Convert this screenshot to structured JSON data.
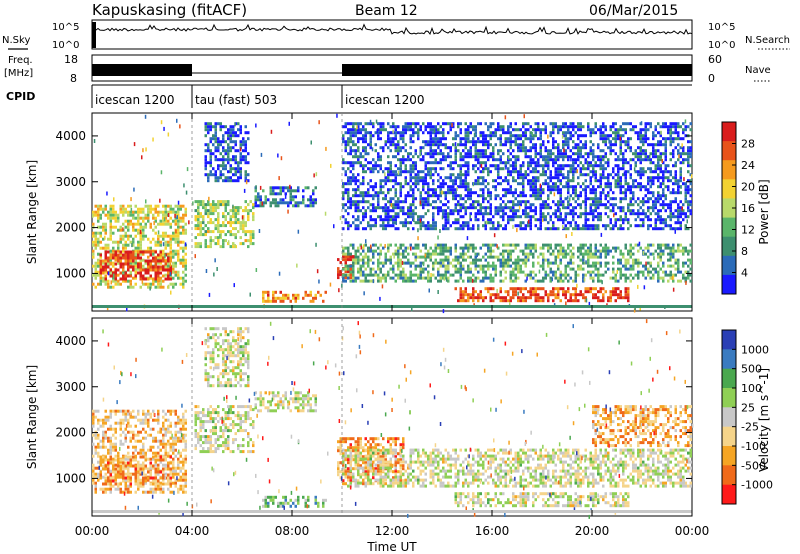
{
  "header": {
    "station": "Kapuskasing (fitACF)",
    "beam": "Beam 12",
    "date": "06/Mar/2015"
  },
  "left_labels": {
    "nsky": "N.Sky",
    "nsky_ticks": [
      "10^5",
      "10^0"
    ],
    "freq": "Freq.",
    "freq_unit": "[MHz]",
    "freq_ticks": [
      "18",
      "8"
    ],
    "cpid": "CPID"
  },
  "right_labels": {
    "nsearch": "N.Search",
    "nsearch_ticks": [
      "10^5",
      "10^0"
    ],
    "nave": "Nave",
    "nave_ticks": [
      "60",
      "0"
    ]
  },
  "cpid_segments": [
    {
      "label": "icescan 1200",
      "start_hour": 0,
      "end_hour": 4
    },
    {
      "label": "tau (fast) 503",
      "start_hour": 4,
      "end_hour": 10
    },
    {
      "label": "icescan 1200",
      "start_hour": 10,
      "end_hour": 24
    }
  ],
  "colors": {
    "power": [
      "#1a1aff",
      "#2b6bb8",
      "#3d8f6f",
      "#5ab56a",
      "#b8d96a",
      "#f2d232",
      "#f59a1e",
      "#e8531a",
      "#d91c1c"
    ],
    "velocity": [
      "#ff1a1a",
      "#f06a1a",
      "#f5a524",
      "#f5d48a",
      "#c8c8c8",
      "#8fcf55",
      "#4aa84f",
      "#3a7bc0",
      "#2a3fb5"
    ]
  },
  "chart_data": [
    {
      "type": "heatmap",
      "title": "Power",
      "xlabel": "Time UT",
      "ylabel": "Slant Range [km]",
      "xlim_hours": [
        0,
        24
      ],
      "ylim": [
        180,
        4500
      ],
      "x_ticks": [
        "00:00",
        "04:00",
        "08:00",
        "12:00",
        "16:00",
        "20:00",
        "00:00"
      ],
      "y_ticks": [
        1000,
        2000,
        3000,
        4000
      ],
      "colorbar": {
        "label": "Power [dB]",
        "ticks": [
          "4",
          "8",
          "12",
          "16",
          "20",
          "24",
          "28"
        ],
        "range": [
          0,
          30
        ]
      },
      "echo_regions": [
        {
          "t0": 0.0,
          "t1": 3.8,
          "r0": 700,
          "r1": 2500,
          "level": 0.55
        },
        {
          "t0": 0.3,
          "t1": 3.2,
          "r0": 900,
          "r1": 1500,
          "level": 0.9
        },
        {
          "t0": 4.1,
          "t1": 6.5,
          "r0": 1600,
          "r1": 2600,
          "level": 0.5
        },
        {
          "t0": 4.5,
          "t1": 6.2,
          "r0": 3000,
          "r1": 4300,
          "level": 0.15
        },
        {
          "t0": 6.5,
          "t1": 9.0,
          "r0": 2500,
          "r1": 2900,
          "level": 0.2
        },
        {
          "t0": 6.8,
          "t1": 9.4,
          "r0": 380,
          "r1": 620,
          "level": 0.75
        },
        {
          "t0": 9.8,
          "t1": 10.5,
          "r0": 900,
          "r1": 1400,
          "level": 0.95
        },
        {
          "t0": 10.0,
          "t1": 24.0,
          "r0": 800,
          "r1": 1650,
          "level": 0.35
        },
        {
          "t0": 14.5,
          "t1": 21.5,
          "r0": 400,
          "r1": 700,
          "level": 0.85
        },
        {
          "t0": 10.0,
          "t1": 24.0,
          "r0": 2000,
          "r1": 4300,
          "level": 0.12
        }
      ]
    },
    {
      "type": "heatmap",
      "title": "Velocity",
      "xlabel": "Time UT",
      "ylabel": "Slant Range [km]",
      "xlim_hours": [
        0,
        24
      ],
      "ylim": [
        180,
        4500
      ],
      "x_ticks": [
        "00:00",
        "04:00",
        "08:00",
        "12:00",
        "16:00",
        "20:00",
        "00:00"
      ],
      "y_ticks": [
        1000,
        2000,
        3000,
        4000
      ],
      "colorbar": {
        "label": "Velocity [m s^-1]",
        "ticks": [
          "1000",
          "500",
          "100",
          "25",
          "-25",
          "-100",
          "-500",
          "-1000"
        ],
        "range": [
          -1000,
          1000
        ]
      },
      "echo_regions": [
        {
          "t0": 0.0,
          "t1": 3.8,
          "r0": 700,
          "r1": 2500,
          "level": 0.35
        },
        {
          "t0": 0.3,
          "t1": 3.2,
          "r0": 900,
          "r1": 1500,
          "level": 0.25
        },
        {
          "t0": 4.1,
          "t1": 6.5,
          "r0": 1600,
          "r1": 2600,
          "level": 0.5
        },
        {
          "t0": 4.5,
          "t1": 6.2,
          "r0": 3000,
          "r1": 4300,
          "level": 0.5
        },
        {
          "t0": 6.5,
          "t1": 9.0,
          "r0": 2500,
          "r1": 2900,
          "level": 0.5
        },
        {
          "t0": 6.8,
          "t1": 9.4,
          "r0": 380,
          "r1": 620,
          "level": 0.65
        },
        {
          "t0": 9.8,
          "t1": 12.5,
          "r0": 900,
          "r1": 1900,
          "level": 0.25
        },
        {
          "t0": 10.0,
          "t1": 24.0,
          "r0": 800,
          "r1": 1650,
          "level": 0.5
        },
        {
          "t0": 14.5,
          "t1": 21.5,
          "r0": 400,
          "r1": 700,
          "level": 0.5
        },
        {
          "t0": 20.0,
          "t1": 24.0,
          "r0": 1700,
          "r1": 2600,
          "level": 0.3
        }
      ]
    }
  ]
}
